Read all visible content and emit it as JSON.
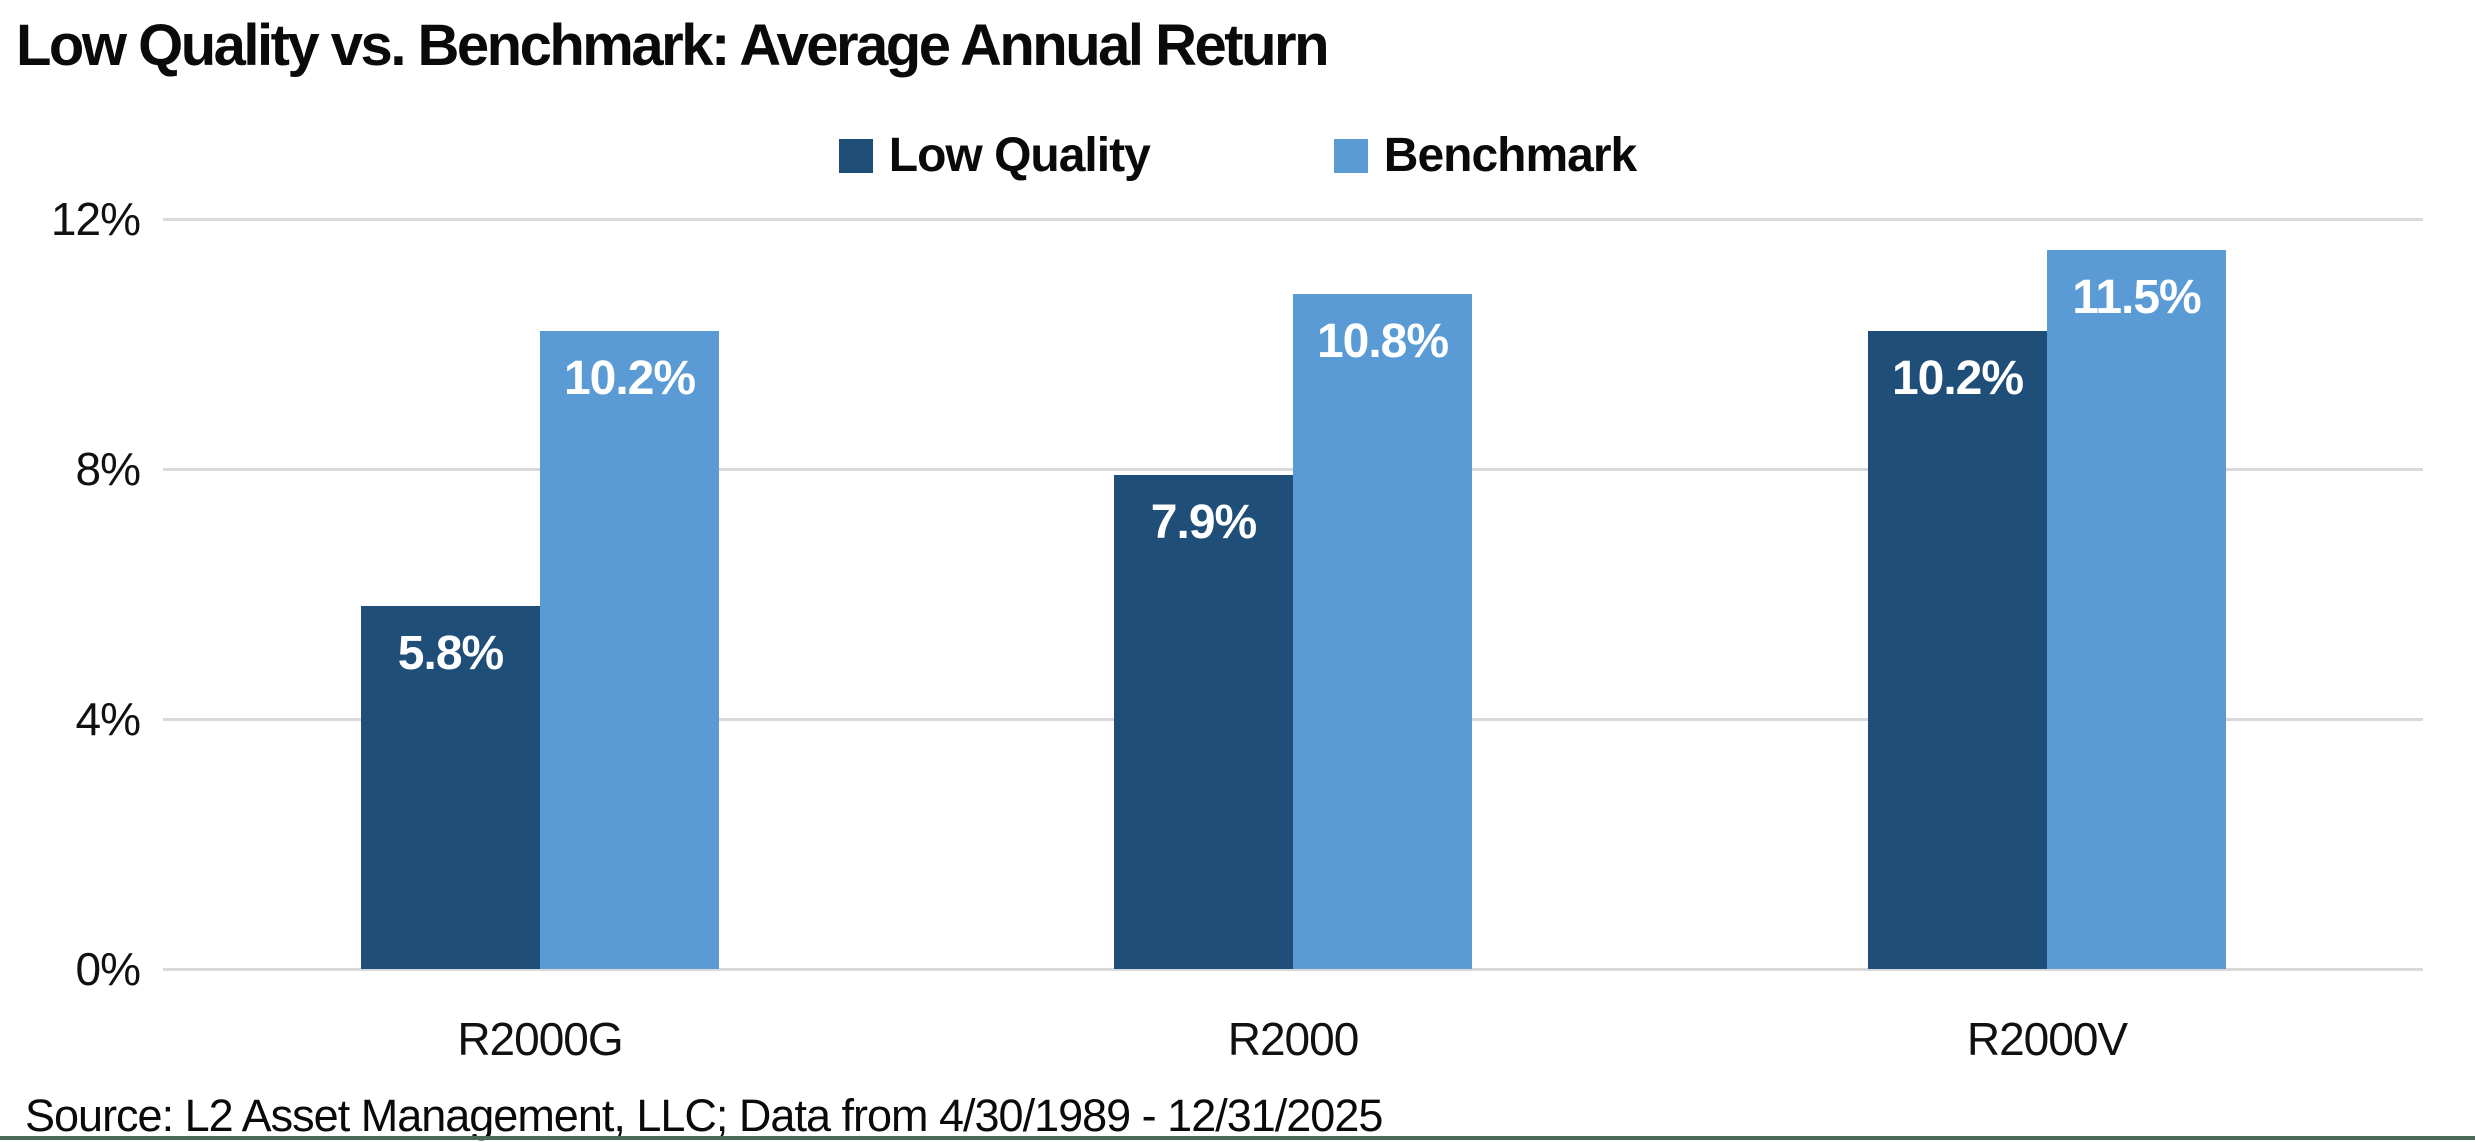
{
  "source_note": "Source: L2 Asset Management, LLC; Data from 4/30/1989 - 12/31/2025",
  "colors": {
    "low_quality": "#1F4E79",
    "benchmark": "#5B9BD5",
    "gridline": "#D9D9D9",
    "footer_rule": "#4B6A55",
    "text": "#0A0A0A",
    "bar_label": "#FFFFFF"
  },
  "chart_data": {
    "type": "bar",
    "title": "Low Quality vs. Benchmark: Average Annual Return",
    "categories": [
      "R2000G",
      "R2000",
      "R2000V"
    ],
    "series": [
      {
        "name": "Low Quality",
        "color": "#1F4E79",
        "values": [
          5.8,
          7.9,
          10.2
        ],
        "labels": [
          "5.8%",
          "7.9%",
          "10.2%"
        ]
      },
      {
        "name": "Benchmark",
        "color": "#5B9BD5",
        "values": [
          10.2,
          10.8,
          11.5
        ],
        "labels": [
          "10.2%",
          "10.8%",
          "11.5%"
        ]
      }
    ],
    "xlabel": "",
    "ylabel": "",
    "ylim": [
      0,
      12
    ],
    "ytick_values": [
      12,
      8,
      4,
      0
    ],
    "ytick_labels": [
      "12%",
      "8%",
      "4%",
      "0%"
    ],
    "grid": true,
    "legend_position": "top-center",
    "value_labels": "inside-top",
    "bar_label_color": "#FFFFFF"
  }
}
